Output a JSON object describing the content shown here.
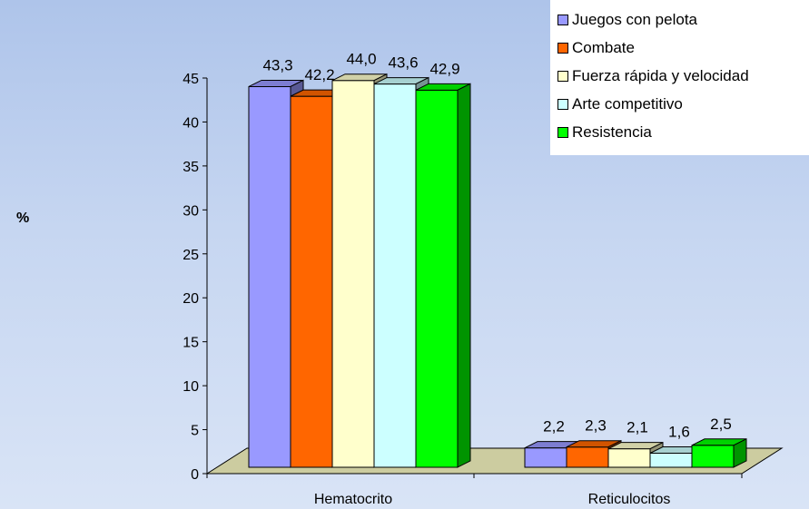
{
  "chart_data": {
    "type": "bar",
    "title": "",
    "xlabel": "",
    "ylabel": "%",
    "categories": [
      "Hematocrito",
      "Reticulocitos"
    ],
    "series": [
      {
        "name": "Juegos con pelota",
        "values": [
          43.3,
          2.2
        ],
        "labels": [
          "43,3",
          "2,2"
        ],
        "color": "#9999ff"
      },
      {
        "name": "Combate",
        "values": [
          42.2,
          2.3
        ],
        "labels": [
          "42,2",
          "2,3"
        ],
        "color": "#ff6600"
      },
      {
        "name": "Fuerza rápida y velocidad",
        "values": [
          44.0,
          2.1
        ],
        "labels": [
          "44,0",
          "2,1"
        ],
        "color": "#ffffcc"
      },
      {
        "name": "Arte competitivo",
        "values": [
          43.6,
          1.6
        ],
        "labels": [
          "43,6",
          "1,6"
        ],
        "color": "#ccffff"
      },
      {
        "name": "Resistencia",
        "values": [
          42.9,
          2.5
        ],
        "labels": [
          "42,9",
          "2,5"
        ],
        "color": "#00ff00"
      }
    ],
    "yticks": [
      "0",
      "5",
      "10",
      "15",
      "20",
      "25",
      "30",
      "35",
      "40",
      "45"
    ],
    "ylim": [
      0,
      45
    ],
    "grid": false,
    "legend_position": "top-right",
    "floor_color": "#cccca0"
  }
}
